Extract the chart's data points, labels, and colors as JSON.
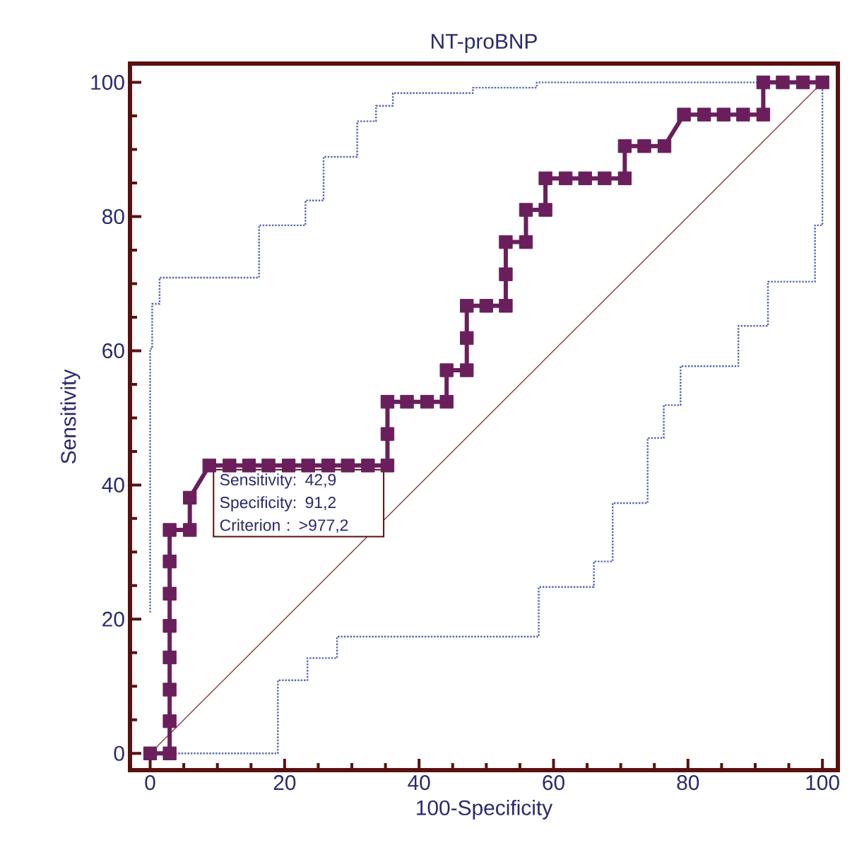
{
  "chart_data": {
    "type": "line",
    "title": "NT-proBNP",
    "xlabel": "100-Specificity",
    "ylabel": "Sensitivity",
    "xlim": [
      -3,
      102.3
    ],
    "ylim": [
      -2.5,
      102.8
    ],
    "xticks": [
      0,
      20,
      40,
      60,
      80,
      100
    ],
    "yticks": [
      0,
      20,
      40,
      60,
      80,
      100
    ],
    "series": [
      {
        "color": "#5566b0",
        "line_style": "dotted",
        "marker": "none",
        "x": [
          0,
          0,
          0.3,
          0.3,
          1.4,
          1.4,
          16.2,
          16.2,
          23.1,
          23.1,
          25.8,
          25.8,
          30.8,
          30.8,
          33.6,
          33.6,
          36.1,
          36.1,
          48,
          48,
          57.5,
          57.5,
          100
        ],
        "values": [
          21,
          60.3,
          60.3,
          67,
          67,
          70.9,
          70.9,
          78.7,
          78.7,
          82.4,
          82.4,
          88.9,
          88.9,
          94.2,
          94.2,
          96.5,
          96.5,
          98.4,
          98.4,
          99.2,
          99.2,
          100,
          100
        ]
      },
      {
        "color": "#5566b0",
        "line_style": "dotted",
        "marker": "none",
        "x": [
          2.8,
          19,
          19,
          23.4,
          23.4,
          27.8,
          27.8,
          57.8,
          57.8,
          66,
          66,
          68.8,
          68.8,
          74,
          74,
          76.4,
          76.4,
          78.9,
          78.9,
          87.5,
          87.5,
          91.9,
          91.9,
          98.9,
          98.9,
          100,
          100
        ],
        "values": [
          0,
          0,
          10.9,
          10.9,
          14.2,
          14.2,
          17.4,
          17.4,
          24.8,
          24.8,
          28.6,
          28.6,
          37.3,
          37.3,
          47,
          47,
          51.9,
          51.9,
          57.7,
          57.7,
          63.7,
          63.7,
          70.3,
          70.3,
          78.7,
          78.7,
          100
        ]
      },
      {
        "color": "#8b3a3a",
        "line_style": "solid",
        "marker": "none",
        "x": [
          0,
          100
        ],
        "values": [
          0,
          100
        ]
      },
      {
        "color": "#6a1f5c",
        "line_style": "solid",
        "marker": "square",
        "x": [
          0,
          2.9,
          2.9,
          2.9,
          2.9,
          2.9,
          2.9,
          2.9,
          2.9,
          5.9,
          5.9,
          8.8,
          11.8,
          14.7,
          17.6,
          20.6,
          23.5,
          26.5,
          29.4,
          32.4,
          35.3,
          35.3,
          35.3,
          38.2,
          41.2,
          44.1,
          44.1,
          47.1,
          47.1,
          47.1,
          50,
          52.9,
          52.9,
          52.9,
          55.9,
          55.9,
          58.8,
          58.8,
          61.8,
          64.7,
          67.6,
          70.6,
          70.6,
          73.5,
          76.5,
          79.4,
          82.4,
          85.3,
          88.2,
          91.2,
          91.2,
          94.1,
          97.1,
          100
        ],
        "values": [
          0,
          0,
          4.8,
          9.5,
          14.3,
          19,
          23.8,
          28.6,
          33.3,
          33.3,
          38.1,
          42.9,
          42.9,
          42.9,
          42.9,
          42.9,
          42.9,
          42.9,
          42.9,
          42.9,
          42.9,
          47.6,
          52.4,
          52.4,
          52.4,
          52.4,
          57.1,
          57.1,
          61.9,
          66.7,
          66.7,
          66.7,
          71.4,
          76.2,
          76.2,
          81,
          81,
          85.7,
          85.7,
          85.7,
          85.7,
          85.7,
          90.5,
          90.5,
          90.5,
          95.2,
          95.2,
          95.2,
          95.2,
          95.2,
          100,
          100,
          100,
          100
        ]
      }
    ],
    "annotations": [
      {
        "text": "Sensitivity: 42,9",
        "x": 8.8,
        "y": 42.9
      },
      "Specificity: 91,2",
      "Criterion : >977,2"
    ]
  }
}
